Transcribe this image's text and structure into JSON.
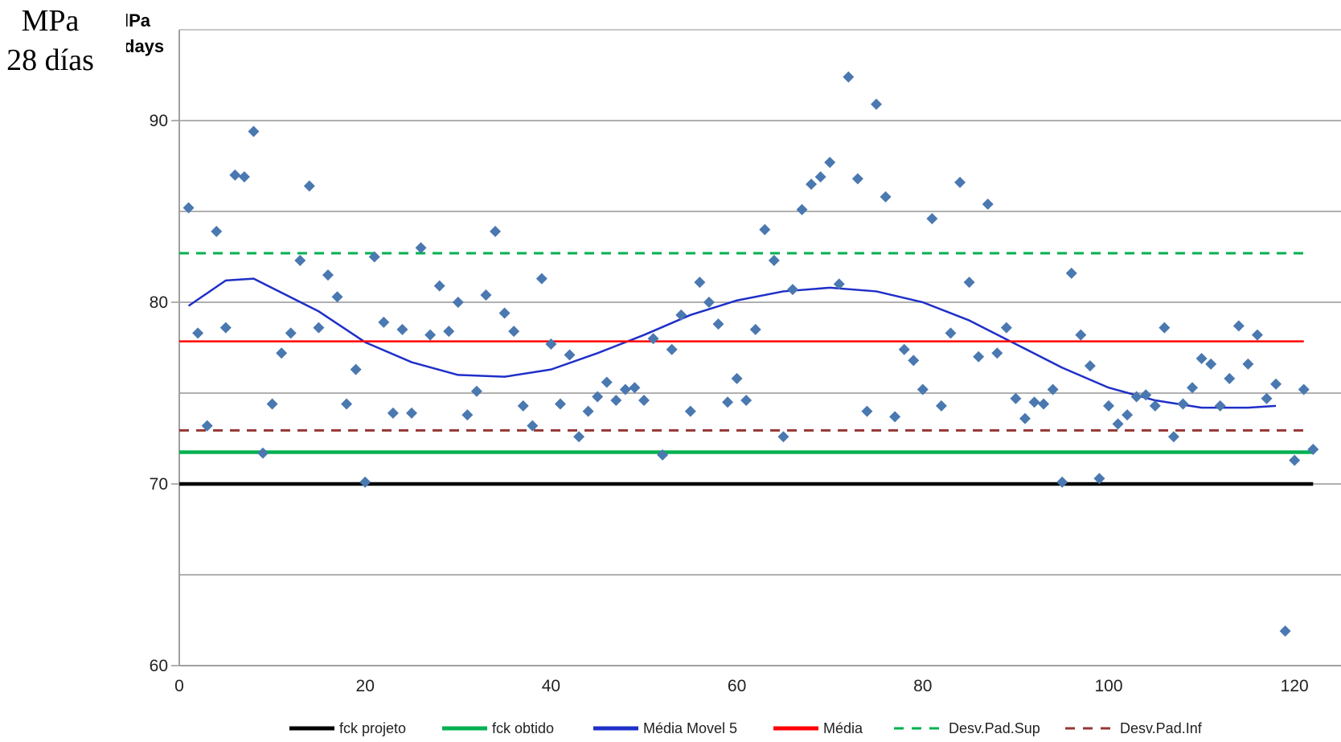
{
  "unit_label": {
    "line1": "MPa",
    "line2": "28 días"
  },
  "inner_label": {
    "line1": "lPa",
    "line2": "days"
  },
  "chart_data": {
    "type": "scatter",
    "title": "",
    "xlabel": "",
    "ylabel": "MPa 28 días",
    "xlim": [
      0,
      125
    ],
    "ylim": [
      60,
      95
    ],
    "xticks": [
      0,
      20,
      40,
      60,
      80,
      100,
      120
    ],
    "yticks": [
      60,
      70,
      80,
      90
    ],
    "grid": "horizontal",
    "legend_position": "bottom",
    "points": {
      "name": "ensaios",
      "color": "#4a78b0",
      "y": [
        85.2,
        78.3,
        73.2,
        83.9,
        78.6,
        87.0,
        86.9,
        89.4,
        71.7,
        74.4,
        77.2,
        78.3,
        82.3,
        86.4,
        78.6,
        81.5,
        80.3,
        74.4,
        76.3,
        70.1,
        82.5,
        78.9,
        73.9,
        78.5,
        73.9,
        83.0,
        78.2,
        80.9,
        78.4,
        80.0,
        73.8,
        75.1,
        80.4,
        83.9,
        79.4,
        78.4,
        74.3,
        73.2,
        81.3,
        77.7,
        74.4,
        77.1,
        72.6,
        74.0,
        74.8,
        75.6,
        74.6,
        75.2,
        75.3,
        74.6,
        78.0,
        71.6,
        77.4,
        79.3,
        74.0,
        81.1,
        80.0,
        78.8,
        74.5,
        75.8,
        74.6,
        78.5,
        84.0,
        82.3,
        72.6,
        80.7,
        85.1,
        86.5,
        86.9,
        87.7,
        81.0,
        92.4,
        86.8,
        74.0,
        90.9,
        85.8,
        73.7,
        77.4,
        76.8,
        75.2,
        84.6,
        74.3,
        78.3,
        86.6,
        81.1,
        77.0,
        85.4,
        77.2,
        78.6,
        74.7,
        73.6,
        74.5,
        74.4,
        75.2,
        70.1,
        81.6,
        78.2,
        76.5,
        70.3,
        74.3,
        73.3,
        73.8,
        74.8,
        74.9,
        74.3,
        78.6,
        72.6,
        74.4,
        75.3,
        76.9,
        76.6,
        74.3,
        75.8,
        78.7,
        76.6,
        78.2,
        74.7,
        75.5,
        61.9,
        71.3,
        75.2,
        71.9
      ]
    },
    "series": [
      {
        "name": "fck projeto",
        "color": "#000000",
        "style": "solid",
        "x": [
          0,
          122
        ],
        "y": [
          70,
          70
        ]
      },
      {
        "name": "fck obtido",
        "color": "#00b050",
        "style": "solid",
        "x": [
          0,
          122
        ],
        "y": [
          71.75,
          71.75
        ]
      },
      {
        "name": "Média Movel 5",
        "color": "#1f2fc8",
        "style": "solid",
        "x": [
          1,
          5,
          8,
          15,
          20,
          25,
          30,
          35,
          40,
          45,
          50,
          55,
          60,
          65,
          70,
          75,
          80,
          85,
          90,
          95,
          100,
          105,
          110,
          115,
          118
        ],
        "y": [
          79.8,
          81.2,
          81.3,
          79.5,
          77.8,
          76.7,
          76.0,
          75.9,
          76.3,
          77.2,
          78.2,
          79.3,
          80.1,
          80.6,
          80.8,
          80.6,
          80.0,
          79.0,
          77.7,
          76.4,
          75.3,
          74.6,
          74.2,
          74.2,
          74.3
        ]
      },
      {
        "name": "Média",
        "color": "#ff0000",
        "style": "solid",
        "x": [
          0,
          121
        ],
        "y": [
          77.85,
          77.85
        ]
      },
      {
        "name": "Desv.Pad.Sup",
        "color": "#00b050",
        "style": "dashed",
        "x": [
          0,
          121
        ],
        "y": [
          82.7,
          82.7
        ]
      },
      {
        "name": "Desv.Pad.Inf",
        "color": "#953735",
        "style": "dashed",
        "x": [
          0,
          121
        ],
        "y": [
          72.95,
          72.95
        ]
      }
    ]
  }
}
